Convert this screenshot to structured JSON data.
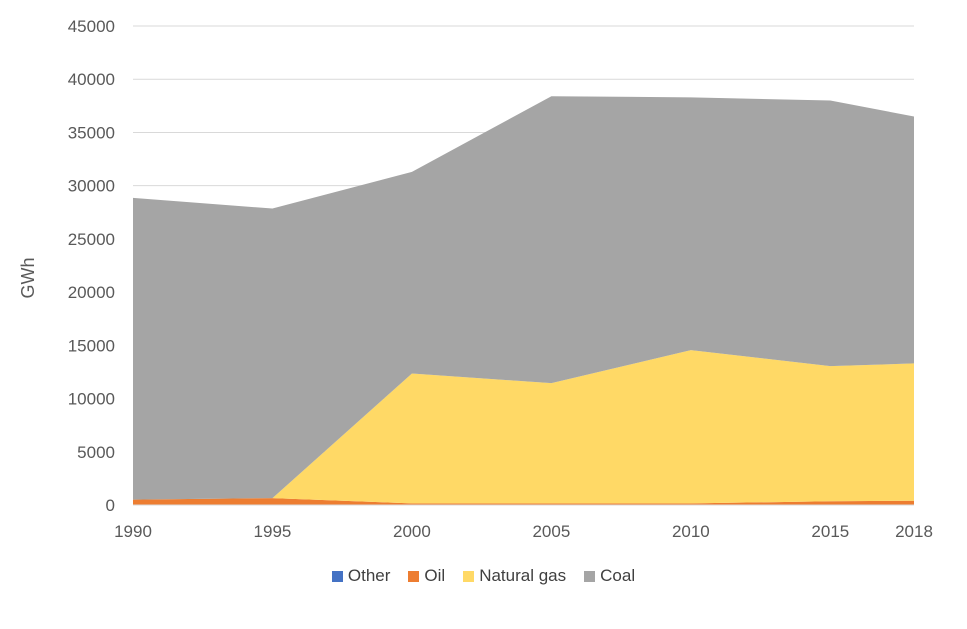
{
  "chart_data": {
    "type": "area",
    "stacked": true,
    "x": [
      1990,
      1995,
      2000,
      2005,
      2010,
      2015,
      2018
    ],
    "xticks": [
      "1990",
      "1995",
      "2000",
      "2005",
      "2010",
      "2015",
      "2018"
    ],
    "ylabel": "GWh",
    "ylim": [
      0,
      45000
    ],
    "yticks": [
      "0",
      "5000",
      "10000",
      "15000",
      "20000",
      "25000",
      "30000",
      "35000",
      "40000",
      "45000"
    ],
    "grid": true,
    "legend_position": "bottom",
    "series": [
      {
        "name": "Other",
        "color": "#4472C4",
        "values": [
          50,
          50,
          50,
          50,
          50,
          50,
          50
        ]
      },
      {
        "name": "Oil",
        "color": "#ED7D31",
        "values": [
          450,
          600,
          100,
          100,
          100,
          300,
          350
        ]
      },
      {
        "name": "Natural gas",
        "color": "#FFD966",
        "values": [
          0,
          0,
          12200,
          11300,
          14400,
          12700,
          12900
        ]
      },
      {
        "name": "Coal",
        "color": "#A5A5A5",
        "values": [
          28350,
          27200,
          18950,
          26950,
          23750,
          24950,
          23200
        ]
      }
    ]
  }
}
